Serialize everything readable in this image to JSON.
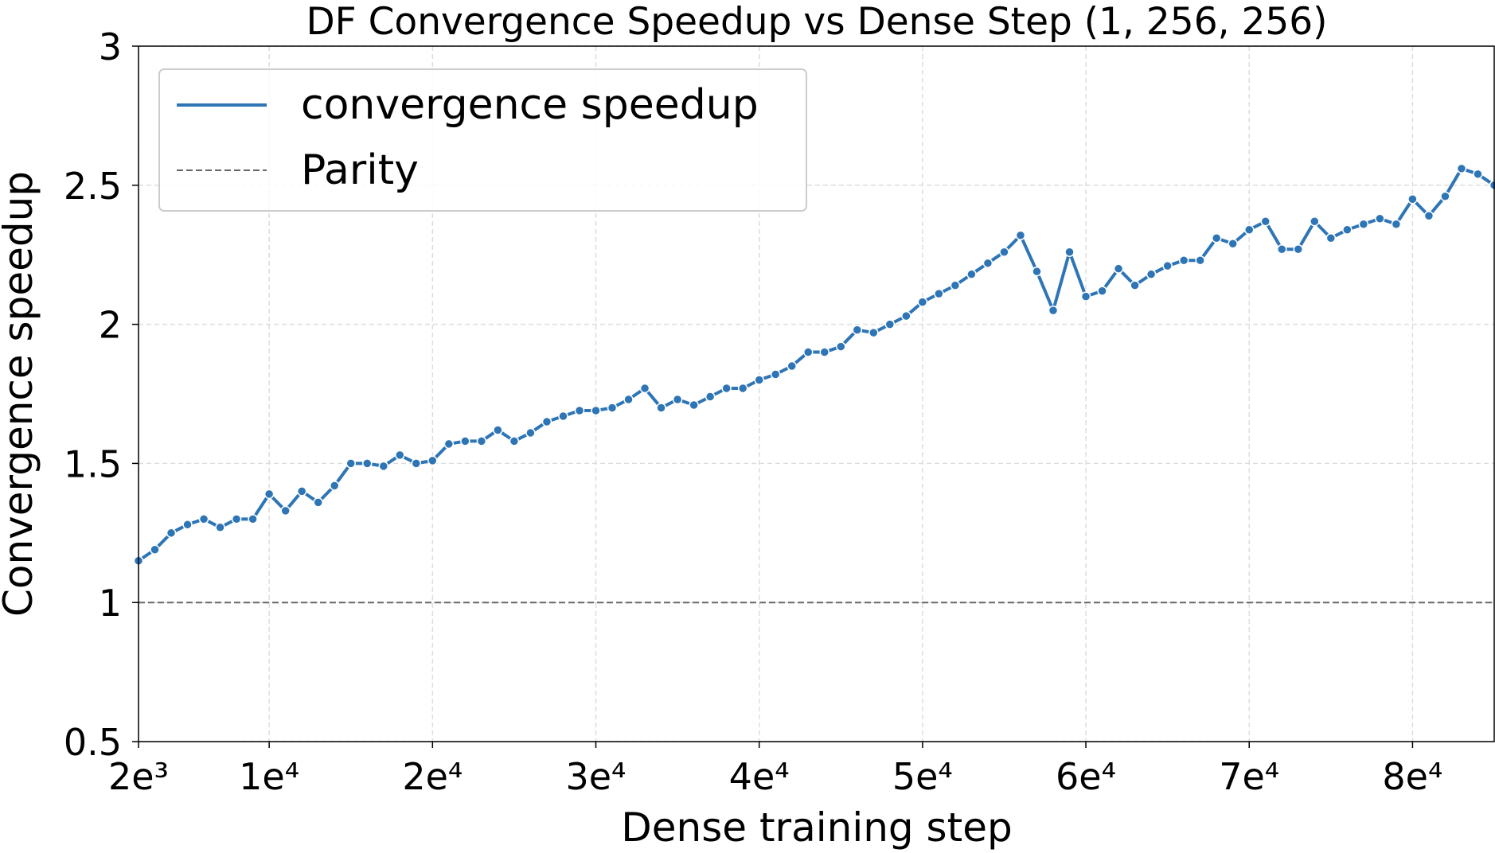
{
  "chart_data": {
    "type": "line",
    "title": "DF Convergence Speedup vs Dense Step (1, 256, 256)",
    "x_label": "Dense training step",
    "y_label": "Convergence speedup",
    "x": [
      2000,
      3000,
      4000,
      5000,
      6000,
      7000,
      8000,
      9000,
      10000,
      11000,
      12000,
      13000,
      14000,
      15000,
      16000,
      17000,
      18000,
      19000,
      20000,
      21000,
      22000,
      23000,
      24000,
      25000,
      26000,
      27000,
      28000,
      29000,
      30000,
      31000,
      32000,
      33000,
      34000,
      35000,
      36000,
      37000,
      38000,
      39000,
      40000,
      41000,
      42000,
      43000,
      44000,
      45000,
      46000,
      47000,
      48000,
      49000,
      50000,
      51000,
      52000,
      53000,
      54000,
      55000,
      56000,
      57000,
      58000,
      59000,
      60000,
      61000,
      62000,
      63000,
      64000,
      65000,
      66000,
      67000,
      68000,
      69000,
      70000,
      71000,
      72000,
      73000,
      74000,
      75000,
      76000,
      77000,
      78000,
      79000,
      80000,
      81000,
      82000,
      83000,
      84000,
      85000
    ],
    "series": [
      {
        "name": "convergence speedup",
        "color": "#2e75b6",
        "values": [
          1.15,
          1.19,
          1.25,
          1.28,
          1.3,
          1.27,
          1.3,
          1.3,
          1.39,
          1.33,
          1.4,
          1.36,
          1.42,
          1.5,
          1.5,
          1.49,
          1.53,
          1.5,
          1.51,
          1.57,
          1.58,
          1.58,
          1.62,
          1.58,
          1.61,
          1.65,
          1.67,
          1.69,
          1.69,
          1.7,
          1.73,
          1.77,
          1.7,
          1.73,
          1.71,
          1.74,
          1.77,
          1.77,
          1.8,
          1.82,
          1.85,
          1.9,
          1.9,
          1.92,
          1.98,
          1.97,
          2.0,
          2.03,
          2.08,
          2.11,
          2.14,
          2.18,
          2.22,
          2.26,
          2.32,
          2.19,
          2.05,
          2.26,
          2.1,
          2.12,
          2.2,
          2.14,
          2.18,
          2.21,
          2.23,
          2.23,
          2.31,
          2.29,
          2.34,
          2.37,
          2.27,
          2.27,
          2.37,
          2.31,
          2.34,
          2.36,
          2.38,
          2.36,
          2.45,
          2.39,
          2.46,
          2.56,
          2.54,
          2.5
        ]
      }
    ],
    "reference_line": {
      "name": "Parity",
      "value": 1,
      "color": "#666666"
    },
    "xlim": [
      2000,
      85000
    ],
    "xticks": [
      {
        "value": 2000,
        "label": "2e³"
      },
      {
        "value": 10000,
        "label": "1e⁴"
      },
      {
        "value": 20000,
        "label": "2e⁴"
      },
      {
        "value": 30000,
        "label": "3e⁴"
      },
      {
        "value": 40000,
        "label": "4e⁴"
      },
      {
        "value": 50000,
        "label": "5e⁴"
      },
      {
        "value": 60000,
        "label": "6e⁴"
      },
      {
        "value": 70000,
        "label": "7e⁴"
      },
      {
        "value": 80000,
        "label": "8e⁴"
      }
    ],
    "ylim": [
      0.5,
      3
    ],
    "yticks": [
      0.5,
      1,
      1.5,
      2,
      2.5,
      3
    ],
    "grid": true,
    "legend": "upper left"
  }
}
